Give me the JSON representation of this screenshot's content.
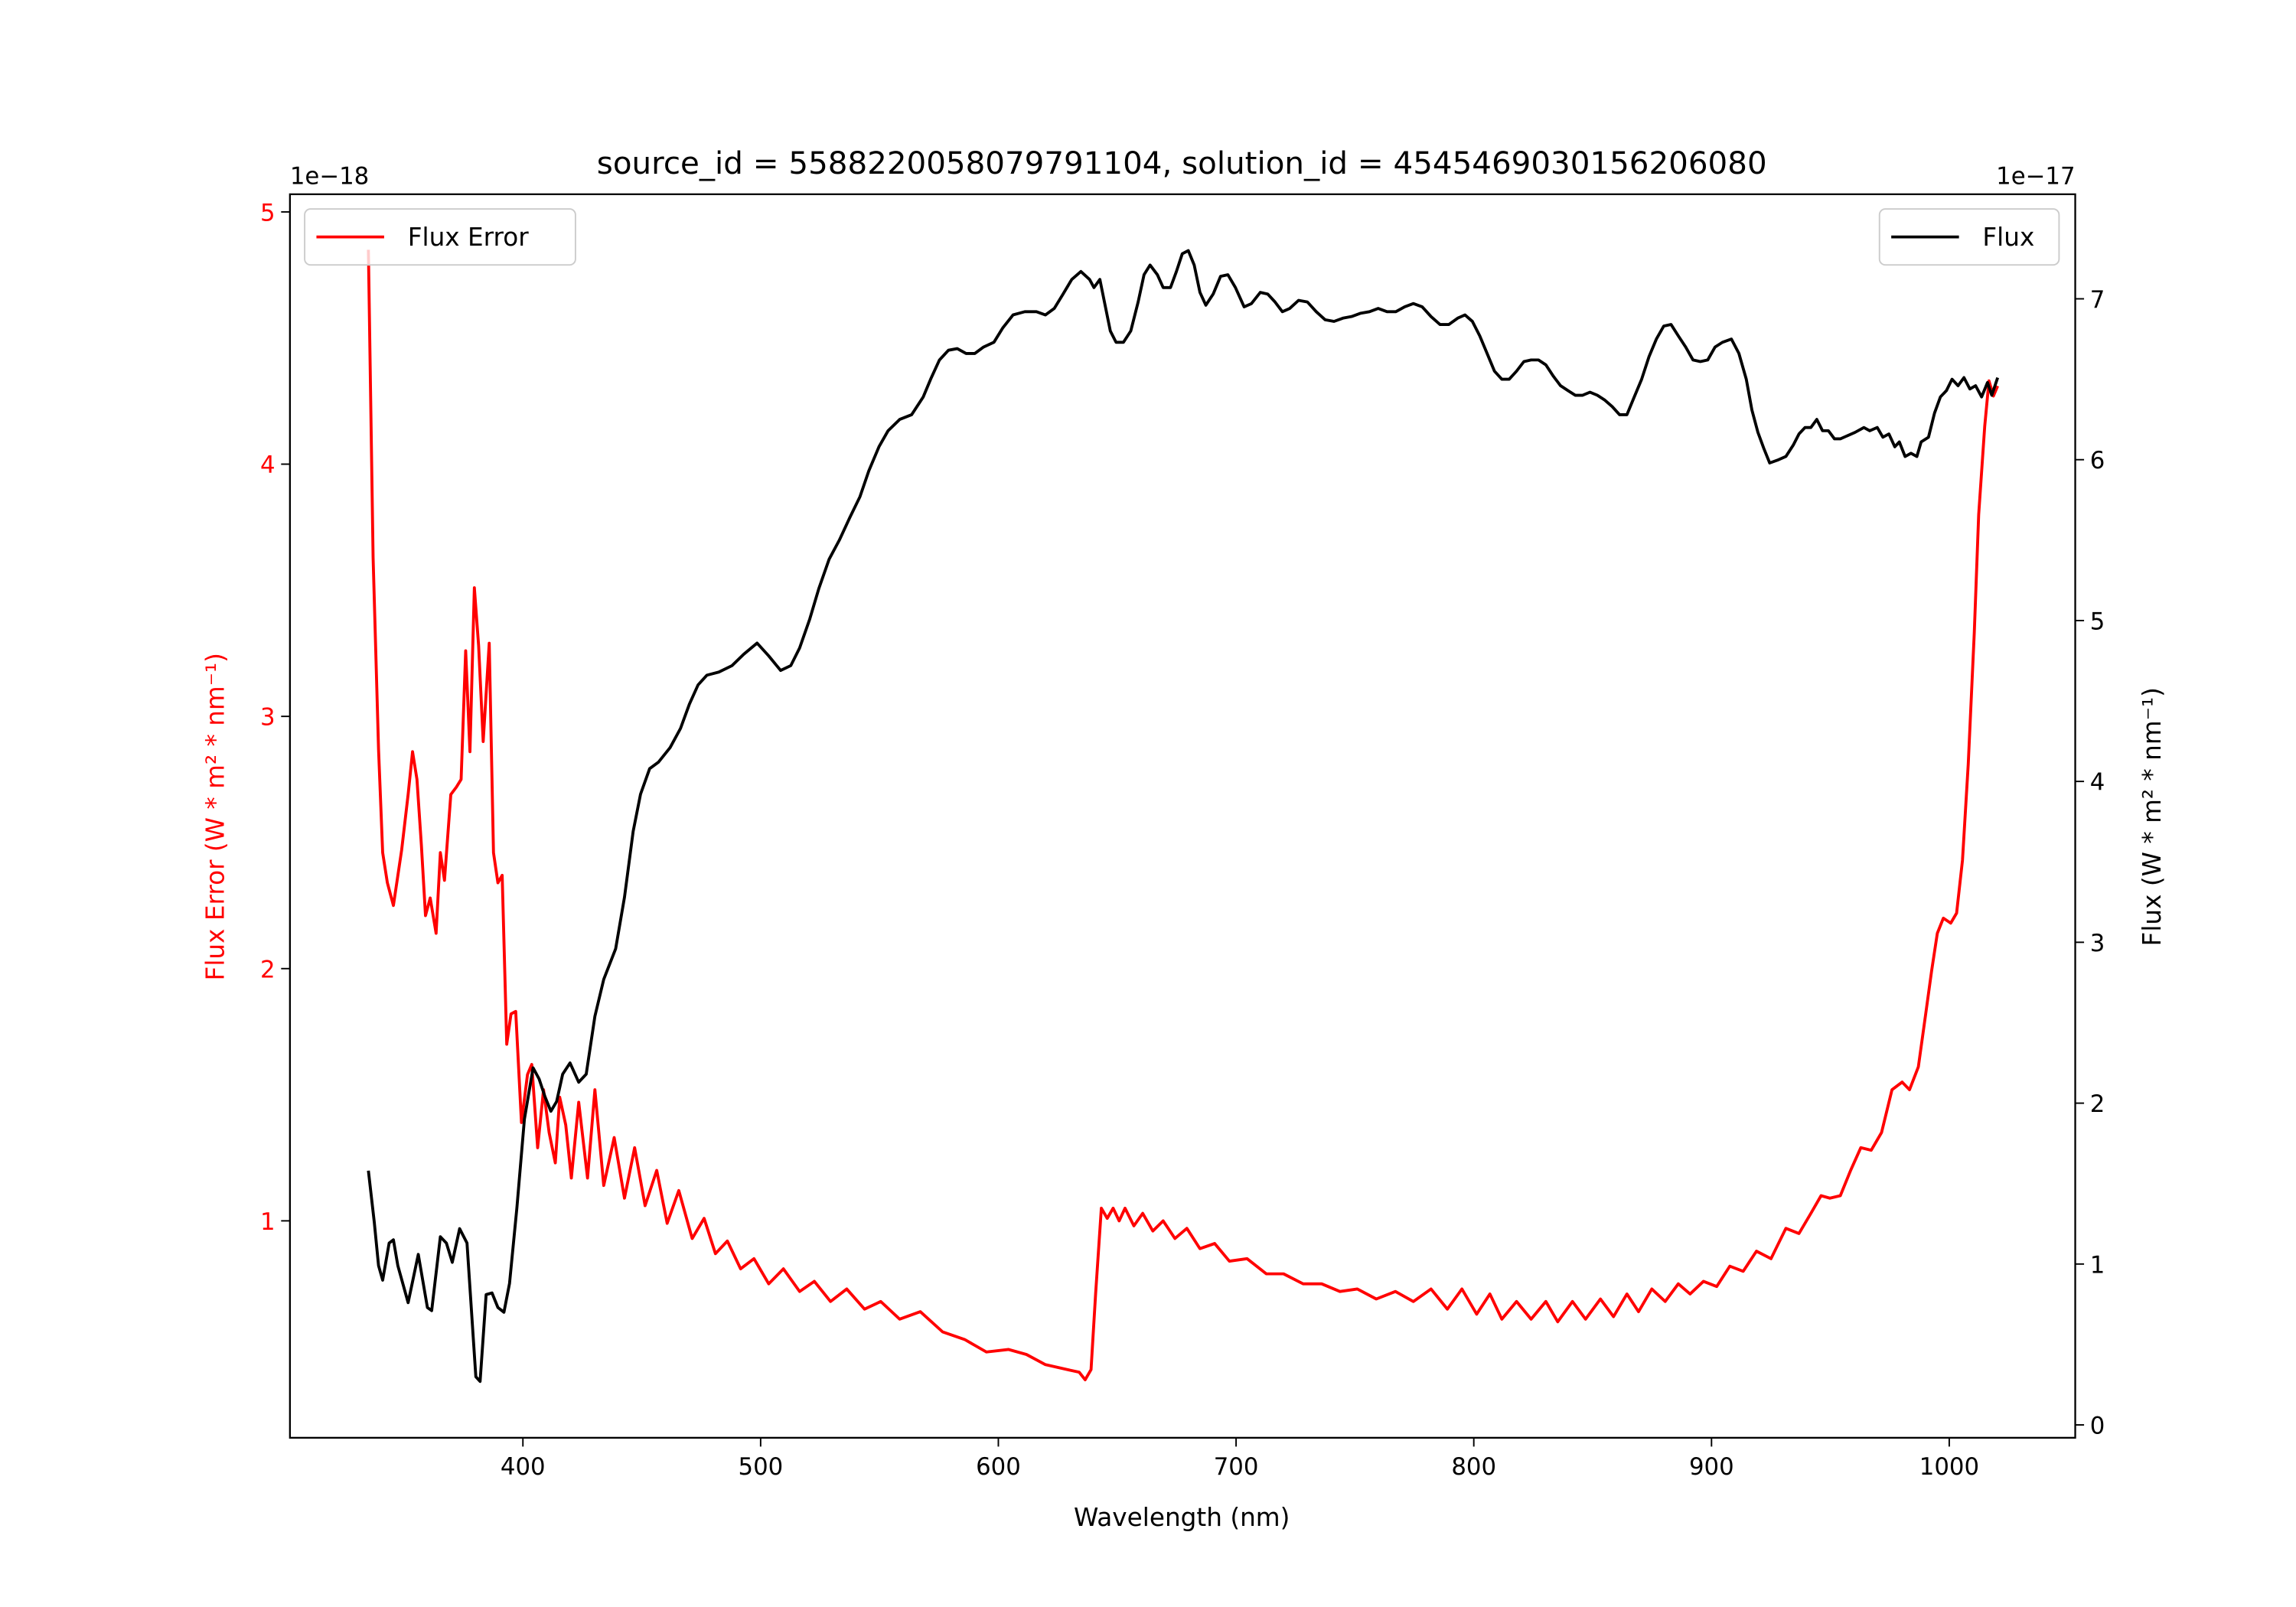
{
  "chart_data": {
    "type": "line",
    "title": "source_id = 5588220058079791104, solution_id = 4545469030156206080",
    "xlabel": "Wavelength (nm)",
    "xlim": [
      302,
      1053
    ],
    "xticks": [
      400,
      500,
      600,
      700,
      800,
      900,
      1000
    ],
    "grid": false,
    "axes": {
      "left": {
        "label": "Flux Error (W * m² * nm⁻¹)",
        "offset_text": "1e−18",
        "ylim": [
          0.14,
          5.07
        ],
        "ticks": [
          1,
          2,
          3,
          4,
          5
        ],
        "color": "#ff0000"
      },
      "right": {
        "label": "Flux (W * m² * nm⁻¹)",
        "offset_text": "1e−17",
        "ylim": [
          -0.08,
          7.65
        ],
        "ticks": [
          0,
          1,
          2,
          3,
          4,
          5,
          6,
          7
        ],
        "color": "#000000"
      }
    },
    "legends": [
      {
        "label": "Flux Error",
        "color": "#ff0000",
        "placement": "upper-left"
      },
      {
        "label": "Flux",
        "color": "#000000",
        "placement": "upper-right"
      }
    ],
    "series": [
      {
        "name": "Flux Error",
        "axis": "left",
        "color": "#ff0000",
        "x": [
          335,
          337,
          339.3,
          341,
          343,
          345.5,
          349,
          351.7,
          353.6,
          355.4,
          357.3,
          359,
          361,
          363.5,
          365.3,
          367,
          369.7,
          372,
          374,
          375.9,
          377.7,
          379.6,
          381.4,
          383.3,
          385.8,
          387.6,
          389.5,
          391.3,
          393.2,
          395,
          397,
          399.4,
          401.9,
          403.7,
          406.2,
          408.7,
          411,
          413.6,
          415.5,
          418,
          420.4,
          423.5,
          427.2,
          430.3,
          434,
          438.4,
          442.7,
          447,
          451.4,
          456.3,
          460.7,
          465.6,
          471.2,
          476.2,
          481,
          486,
          491.6,
          497.2,
          503.4,
          509.6,
          516.4,
          522.6,
          529.4,
          536.2,
          543.7,
          550.5,
          558.5,
          567.2,
          576.5,
          585.8,
          595,
          604.3,
          611.8,
          619.8,
          629,
          634,
          636.5,
          639,
          640.9,
          643.3,
          645.8,
          648.3,
          650.8,
          653.3,
          657,
          660.7,
          665,
          669.3,
          674.3,
          679.3,
          684.8,
          691,
          697.2,
          704.6,
          712.7,
          720,
          728.2,
          736,
          743.7,
          751,
          759,
          767,
          774.6,
          782,
          788.9,
          795,
          801.2,
          806.8,
          811.8,
          818,
          824.1,
          830.3,
          835.3,
          841.5,
          847,
          853.3,
          858.8,
          864.4,
          869.3,
          874.9,
          880.5,
          886,
          891,
          896.6,
          902.2,
          907.7,
          913.3,
          918.9,
          925,
          931.3,
          936.8,
          941.8,
          946.1,
          949.8,
          954.2,
          958.5,
          962.8,
          967.2,
          971.5,
          975.9,
          980.2,
          983.3,
          987,
          990.1,
          992.6,
          995,
          997.5,
          1000.6,
          1003.1,
          1005.6,
          1008,
          1010.5,
          1012.4,
          1014.9,
          1016.7,
          1018.6,
          1020.4
        ],
        "y": [
          4.85,
          3.63,
          2.87,
          2.46,
          2.34,
          2.25,
          2.47,
          2.69,
          2.86,
          2.75,
          2.49,
          2.21,
          2.28,
          2.14,
          2.46,
          2.35,
          2.69,
          2.72,
          2.75,
          3.26,
          2.86,
          3.51,
          3.28,
          2.9,
          3.29,
          2.46,
          2.34,
          2.37,
          1.7,
          1.82,
          1.83,
          1.39,
          1.58,
          1.62,
          1.29,
          1.52,
          1.35,
          1.23,
          1.49,
          1.38,
          1.17,
          1.47,
          1.17,
          1.52,
          1.14,
          1.33,
          1.09,
          1.29,
          1.06,
          1.2,
          0.99,
          1.12,
          0.93,
          1.01,
          0.87,
          0.92,
          0.81,
          0.85,
          0.75,
          0.81,
          0.72,
          0.76,
          0.68,
          0.73,
          0.65,
          0.68,
          0.61,
          0.64,
          0.56,
          0.53,
          0.48,
          0.49,
          0.47,
          0.43,
          0.41,
          0.4,
          0.37,
          0.41,
          0.71,
          1.05,
          1.01,
          1.05,
          1.0,
          1.05,
          0.98,
          1.03,
          0.96,
          1.0,
          0.93,
          0.97,
          0.89,
          0.91,
          0.84,
          0.85,
          0.79,
          0.79,
          0.75,
          0.75,
          0.72,
          0.73,
          0.69,
          0.72,
          0.68,
          0.73,
          0.65,
          0.73,
          0.63,
          0.71,
          0.61,
          0.68,
          0.61,
          0.68,
          0.6,
          0.68,
          0.61,
          0.69,
          0.62,
          0.71,
          0.64,
          0.73,
          0.68,
          0.75,
          0.71,
          0.76,
          0.74,
          0.82,
          0.8,
          0.88,
          0.85,
          0.97,
          0.95,
          1.03,
          1.1,
          1.09,
          1.1,
          1.2,
          1.29,
          1.28,
          1.35,
          1.52,
          1.55,
          1.52,
          1.61,
          1.82,
          1.99,
          2.14,
          2.2,
          2.18,
          2.22,
          2.43,
          2.81,
          3.33,
          3.8,
          4.15,
          4.33,
          4.27,
          4.31
        ]
      },
      {
        "name": "Flux",
        "axis": "right",
        "color": "#000000",
        "x": [
          335,
          337.5,
          339.3,
          341,
          343.7,
          345.5,
          347.4,
          351.7,
          356,
          359.8,
          361.6,
          365.3,
          367.8,
          370.3,
          373.4,
          376.5,
          380.2,
          382,
          384.5,
          387,
          389.5,
          392,
          394.4,
          397.5,
          400.6,
          404.3,
          406.8,
          409.3,
          411.8,
          414.2,
          416.7,
          419.8,
          423.5,
          426.6,
          430.3,
          434,
          439,
          442.7,
          446.4,
          449.5,
          453.3,
          457,
          461.9,
          466.3,
          470,
          473.7,
          477.4,
          482.4,
          488,
          492.9,
          498.5,
          503.4,
          508.4,
          512.7,
          516.4,
          520.7,
          524.5,
          528.8,
          533.1,
          537.5,
          541.8,
          545.5,
          549.8,
          553.6,
          558.5,
          563.5,
          568.4,
          571.5,
          575.2,
          579,
          582.7,
          586.4,
          590.1,
          593.8,
          598.1,
          601.9,
          606.2,
          611.1,
          616,
          619.8,
          623.5,
          627.2,
          630.9,
          634.7,
          638.4,
          640.2,
          642.7,
          644.6,
          647.1,
          649.5,
          652.6,
          655.7,
          658.8,
          661.3,
          663.8,
          666.9,
          669.3,
          672.4,
          674.9,
          677.4,
          679.9,
          682.4,
          684.8,
          687.3,
          690.4,
          693.5,
          696.6,
          699.7,
          703.4,
          706.5,
          710.2,
          713.3,
          716.4,
          719.5,
          722.6,
          726.3,
          730,
          733.7,
          737.5,
          741.2,
          744.9,
          748.6,
          752.3,
          756.1,
          759.8,
          763.5,
          767.2,
          770.9,
          774.6,
          778.3,
          782,
          785.8,
          789.5,
          793.2,
          796.3,
          799.4,
          802.5,
          805.6,
          808.7,
          811.8,
          814.9,
          818,
          821.1,
          824.1,
          827.2,
          830.3,
          833.4,
          836.5,
          839.6,
          842.7,
          845.8,
          848.9,
          852,
          855.1,
          858.2,
          861.3,
          864.4,
          867.5,
          870.6,
          873.7,
          876.8,
          879.9,
          883,
          886,
          889.1,
          892.2,
          895.3,
          898.4,
          901.5,
          904.6,
          908.4,
          911.5,
          914.6,
          917,
          919.5,
          922,
          924.5,
          928.2,
          931.3,
          934.4,
          936.8,
          939.3,
          941.8,
          944.3,
          946.7,
          949.2,
          951.7,
          954.2,
          957.3,
          960.4,
          964.1,
          966.6,
          969.7,
          972.1,
          974.6,
          977.1,
          979,
          981.4,
          983.9,
          986.4,
          988.2,
          991.3,
          993.8,
          996.3,
          998.8,
          1001.2,
          1003.7,
          1006.2,
          1008.7,
          1011.1,
          1013.6,
          1016.1,
          1017.9,
          1020.4
        ],
        "y": [
          1.58,
          1.26,
          0.99,
          0.9,
          1.13,
          1.15,
          0.99,
          0.76,
          1.06,
          0.73,
          0.71,
          1.17,
          1.13,
          1.01,
          1.22,
          1.13,
          0.3,
          0.27,
          0.81,
          0.82,
          0.73,
          0.7,
          0.88,
          1.35,
          1.9,
          2.22,
          2.15,
          2.04,
          1.95,
          2.01,
          2.18,
          2.25,
          2.13,
          2.18,
          2.54,
          2.77,
          2.96,
          3.28,
          3.69,
          3.92,
          4.08,
          4.12,
          4.21,
          4.33,
          4.48,
          4.6,
          4.66,
          4.68,
          4.72,
          4.79,
          4.86,
          4.78,
          4.69,
          4.72,
          4.83,
          5.01,
          5.2,
          5.38,
          5.5,
          5.64,
          5.77,
          5.93,
          6.08,
          6.18,
          6.25,
          6.28,
          6.39,
          6.5,
          6.62,
          6.68,
          6.69,
          6.66,
          6.66,
          6.7,
          6.73,
          6.82,
          6.9,
          6.92,
          6.92,
          6.9,
          6.94,
          7.03,
          7.12,
          7.17,
          7.12,
          7.07,
          7.12,
          6.98,
          6.8,
          6.73,
          6.73,
          6.8,
          6.98,
          7.15,
          7.21,
          7.15,
          7.07,
          7.07,
          7.17,
          7.28,
          7.3,
          7.21,
          7.04,
          6.96,
          7.03,
          7.14,
          7.15,
          7.07,
          6.95,
          6.97,
          7.04,
          7.03,
          6.98,
          6.92,
          6.94,
          6.99,
          6.98,
          6.92,
          6.87,
          6.86,
          6.88,
          6.89,
          6.91,
          6.92,
          6.94,
          6.92,
          6.92,
          6.95,
          6.97,
          6.95,
          6.89,
          6.84,
          6.84,
          6.88,
          6.9,
          6.86,
          6.77,
          6.66,
          6.55,
          6.5,
          6.5,
          6.55,
          6.61,
          6.62,
          6.62,
          6.59,
          6.52,
          6.46,
          6.43,
          6.4,
          6.4,
          6.42,
          6.4,
          6.37,
          6.33,
          6.28,
          6.28,
          6.39,
          6.5,
          6.64,
          6.75,
          6.83,
          6.84,
          6.77,
          6.7,
          6.62,
          6.61,
          6.62,
          6.7,
          6.73,
          6.75,
          6.66,
          6.5,
          6.31,
          6.17,
          6.07,
          5.98,
          6.0,
          6.02,
          6.09,
          6.16,
          6.2,
          6.2,
          6.25,
          6.18,
          6.18,
          6.13,
          6.13,
          6.15,
          6.17,
          6.2,
          6.18,
          6.2,
          6.14,
          6.16,
          6.08,
          6.11,
          6.02,
          6.04,
          6.02,
          6.11,
          6.14,
          6.29,
          6.39,
          6.43,
          6.5,
          6.46,
          6.51,
          6.44,
          6.46,
          6.39,
          6.48,
          6.4,
          6.51
        ]
      }
    ]
  }
}
